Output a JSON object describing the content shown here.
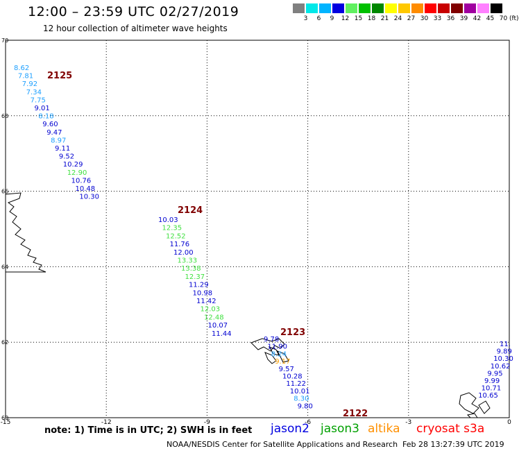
{
  "header": {
    "title": "12:00 – 23:59 UTC 02/27/2019",
    "subtitle": "12 hour collection of altimeter wave heights"
  },
  "legend": {
    "unit": "(ft)",
    "colors": [
      "#808080",
      "#00e8e8",
      "#00b4ff",
      "#0000e0",
      "#60f060",
      "#00c000",
      "#008800",
      "#ffff00",
      "#ffc800",
      "#ff8c00",
      "#ff0000",
      "#c80000",
      "#800000",
      "#a000a0",
      "#ff80ff",
      "#000000"
    ],
    "labels": [
      "3",
      "6",
      "9",
      "12",
      "15",
      "18",
      "21",
      "24",
      "27",
      "30",
      "33",
      "36",
      "39",
      "42",
      "45",
      "70"
    ]
  },
  "axes": {
    "x_ticks": [
      "-15",
      "-12",
      "-9",
      "-6",
      "-3",
      "0"
    ],
    "y_ticks": [
      "70",
      "68",
      "66",
      "64",
      "62",
      "60"
    ],
    "x_range": [
      -15,
      0
    ],
    "y_range": [
      60,
      70
    ],
    "grid": "dotted"
  },
  "tracks": [
    {
      "orbit_label": "2125",
      "points": [
        {
          "label": "8.62",
          "color": "#1ea0ff"
        },
        {
          "label": "7.81",
          "color": "#1ea0ff"
        },
        {
          "label": "7.92",
          "color": "#1ea0ff"
        },
        {
          "label": "7.34",
          "color": "#1ea0ff"
        },
        {
          "label": "7.75",
          "color": "#1ea0ff"
        },
        {
          "label": "9.01",
          "color": "#0000d0"
        },
        {
          "label": "8.18",
          "color": "#1ea0ff"
        },
        {
          "label": "9.60",
          "color": "#0000d0"
        },
        {
          "label": "9.47",
          "color": "#0000d0"
        },
        {
          "label": "8.97",
          "color": "#1ea0ff"
        },
        {
          "label": "9.11",
          "color": "#0000d0"
        },
        {
          "label": "9.52",
          "color": "#0000d0"
        },
        {
          "label": "10.29",
          "color": "#0000d0"
        },
        {
          "label": "12.90",
          "color": "#40e040"
        },
        {
          "label": "10.76",
          "color": "#0000d0"
        },
        {
          "label": "10.48",
          "color": "#0000d0"
        },
        {
          "label": "10.30",
          "color": "#0000d0"
        }
      ]
    },
    {
      "orbit_label": "2124",
      "points": [
        {
          "label": "10.03",
          "color": "#0000d0"
        },
        {
          "label": "12.35",
          "color": "#40e040"
        },
        {
          "label": "12.52",
          "color": "#40e040"
        },
        {
          "label": "11.76",
          "color": "#0000d0"
        },
        {
          "label": "12.00",
          "color": "#0000d0"
        },
        {
          "label": "13.33",
          "color": "#40e040"
        },
        {
          "label": "13.38",
          "color": "#40e040"
        },
        {
          "label": "12.37",
          "color": "#40e040"
        },
        {
          "label": "11.29",
          "color": "#0000d0"
        },
        {
          "label": "10.98",
          "color": "#0000d0"
        },
        {
          "label": "11.42",
          "color": "#0000d0"
        },
        {
          "label": "12.03",
          "color": "#40e040"
        },
        {
          "label": "12.48",
          "color": "#40e040"
        },
        {
          "label": "10.07",
          "color": "#0000d0"
        },
        {
          "label": "11.44",
          "color": "#0000d0"
        }
      ]
    },
    {
      "orbit_label": "2123",
      "points": [
        {
          "label": "9.78",
          "color": "#0000d0"
        },
        {
          "label": "11.90",
          "color": "#0000d0"
        },
        {
          "label": "8.24",
          "color": "#1ea0ff"
        },
        {
          "label": "9.17",
          "color": "#ffa000"
        },
        {
          "label": "9.57",
          "color": "#0000d0"
        },
        {
          "label": "10.28",
          "color": "#0000d0"
        },
        {
          "label": "11.22",
          "color": "#0000d0"
        },
        {
          "label": "10.01",
          "color": "#0000d0"
        },
        {
          "label": "8.30",
          "color": "#1ea0ff"
        },
        {
          "label": "9.80",
          "color": "#0000d0"
        }
      ]
    },
    {
      "orbit_label": "2122",
      "points": []
    },
    {
      "orbit_label": "",
      "points": [
        {
          "label": "11.",
          "color": "#0000d0"
        },
        {
          "label": "9.89",
          "color": "#0000d0"
        },
        {
          "label": "10.30",
          "color": "#0000d0"
        },
        {
          "label": "10.62",
          "color": "#0000d0"
        },
        {
          "label": "9.95",
          "color": "#0000d0"
        },
        {
          "label": "9.99",
          "color": "#0000d0"
        },
        {
          "label": "10.71",
          "color": "#0000d0"
        },
        {
          "label": "10.65",
          "color": "#0000d0"
        }
      ]
    }
  ],
  "footer": {
    "note": "note: 1) Time is in UTC; 2) SWH is in feet",
    "satellites": [
      {
        "name": "jason2",
        "color": "#0000e0"
      },
      {
        "name": "jason3",
        "color": "#00a000"
      },
      {
        "name": "altika",
        "color": "#ff9000"
      },
      {
        "name": "cryosat s3a",
        "color": "#ff0000"
      }
    ],
    "credit": "NOAA/NESDIS Center for Satellite Applications and Research",
    "timestamp": "Feb 28 13:27:39 UTC 2019"
  }
}
